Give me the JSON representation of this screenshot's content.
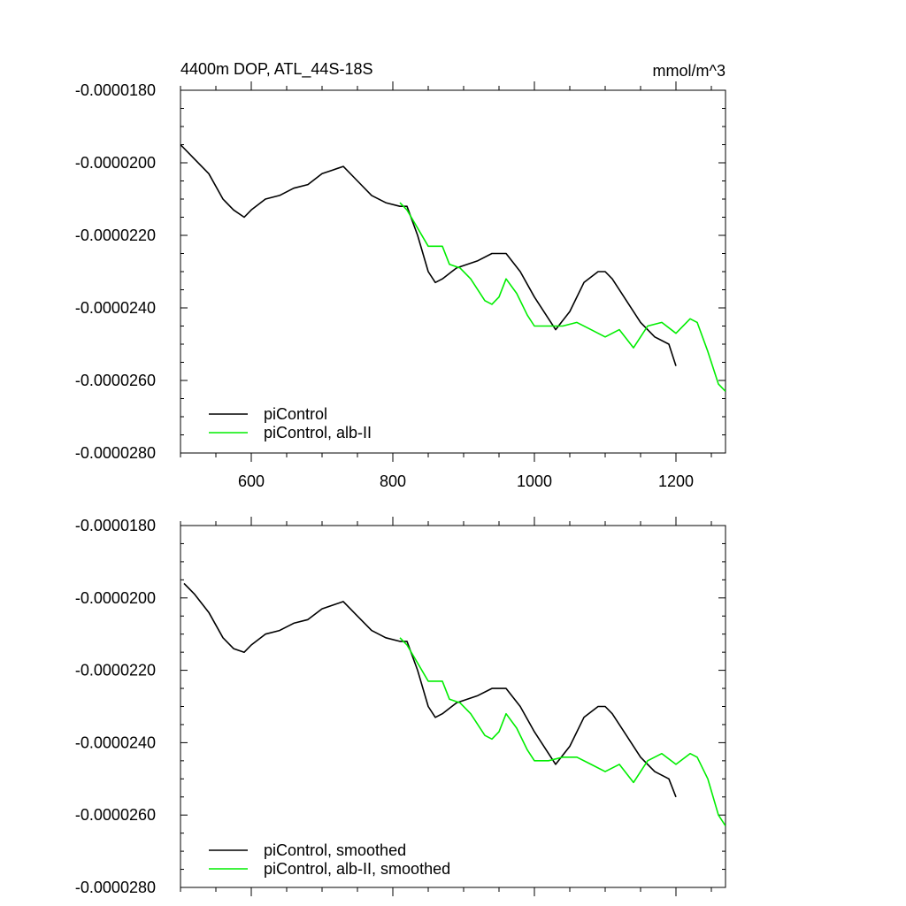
{
  "colors": {
    "control": "#000000",
    "albII": "#00ee00"
  },
  "chart_data": [
    {
      "type": "line",
      "title": "4400m DOP, ATL_44S-18S",
      "units": "mmol/m^3",
      "xlim": [
        500,
        1270
      ],
      "ylim": [
        -2.8e-05,
        -1.8e-05
      ],
      "xticks": [
        600,
        800,
        1000,
        1200
      ],
      "xtick_labels": [
        "600",
        "800",
        "1000",
        "1200"
      ],
      "yticks": [
        -1.8e-05,
        -2e-05,
        -2.2e-05,
        -2.4e-05,
        -2.6e-05,
        -2.8e-05
      ],
      "ytick_labels": [
        "-0.0000180",
        "-0.0000200",
        "-0.0000220",
        "-0.0000240",
        "-0.0000260",
        "-0.0000280"
      ],
      "legend": "bottom-left",
      "series": [
        {
          "name": "piControl",
          "color_key": "control",
          "x": [
            500,
            520,
            540,
            560,
            575,
            590,
            600,
            620,
            640,
            660,
            680,
            700,
            715,
            730,
            750,
            770,
            790,
            810,
            820,
            835,
            850,
            860,
            870,
            890,
            920,
            940,
            960,
            980,
            1000,
            1020,
            1030,
            1050,
            1070,
            1090,
            1100,
            1110,
            1130,
            1150,
            1170,
            1190,
            1200
          ],
          "y": [
            -1.95e-05,
            -1.99e-05,
            -2.03e-05,
            -2.1e-05,
            -2.13e-05,
            -2.15e-05,
            -2.13e-05,
            -2.1e-05,
            -2.09e-05,
            -2.07e-05,
            -2.06e-05,
            -2.03e-05,
            -2.02e-05,
            -2.01e-05,
            -2.05e-05,
            -2.09e-05,
            -2.11e-05,
            -2.12e-05,
            -2.12e-05,
            -2.2e-05,
            -2.3e-05,
            -2.33e-05,
            -2.32e-05,
            -2.29e-05,
            -2.27e-05,
            -2.25e-05,
            -2.25e-05,
            -2.3e-05,
            -2.37e-05,
            -2.43e-05,
            -2.46e-05,
            -2.41e-05,
            -2.33e-05,
            -2.3e-05,
            -2.3e-05,
            -2.32e-05,
            -2.38e-05,
            -2.44e-05,
            -2.48e-05,
            -2.5e-05,
            -2.56e-05
          ]
        },
        {
          "name": "piControl, alb-II",
          "color_key": "albII",
          "x": [
            810,
            820,
            835,
            850,
            870,
            880,
            895,
            910,
            930,
            940,
            950,
            960,
            975,
            990,
            1000,
            1020,
            1040,
            1060,
            1080,
            1100,
            1120,
            1140,
            1160,
            1180,
            1200,
            1220,
            1230,
            1245,
            1260,
            1270
          ],
          "y": [
            -2.11e-05,
            -2.13e-05,
            -2.18e-05,
            -2.23e-05,
            -2.23e-05,
            -2.28e-05,
            -2.29e-05,
            -2.32e-05,
            -2.38e-05,
            -2.39e-05,
            -2.37e-05,
            -2.32e-05,
            -2.36e-05,
            -2.42e-05,
            -2.45e-05,
            -2.45e-05,
            -2.45e-05,
            -2.44e-05,
            -2.46e-05,
            -2.48e-05,
            -2.46e-05,
            -2.51e-05,
            -2.45e-05,
            -2.44e-05,
            -2.47e-05,
            -2.43e-05,
            -2.44e-05,
            -2.52e-05,
            -2.61e-05,
            -2.63e-05
          ]
        }
      ],
      "legend_labels": [
        "piControl",
        "piControl, alb-II"
      ]
    },
    {
      "type": "line",
      "title": "",
      "units": "",
      "xlim": [
        500,
        1270
      ],
      "ylim": [
        -2.8e-05,
        -1.8e-05
      ],
      "xticks": [
        600,
        800,
        1000,
        1200
      ],
      "xtick_labels": [],
      "yticks": [
        -1.8e-05,
        -2e-05,
        -2.2e-05,
        -2.4e-05,
        -2.6e-05,
        -2.8e-05
      ],
      "ytick_labels": [
        "-0.0000180",
        "-0.0000200",
        "-0.0000220",
        "-0.0000240",
        "-0.0000260",
        "-0.0000280"
      ],
      "legend": "bottom-left",
      "series": [
        {
          "name": "piControl, smoothed",
          "color_key": "control",
          "x": [
            505,
            520,
            540,
            560,
            575,
            590,
            600,
            620,
            640,
            660,
            680,
            700,
            715,
            730,
            750,
            770,
            790,
            810,
            820,
            835,
            850,
            860,
            870,
            890,
            920,
            940,
            960,
            980,
            1000,
            1020,
            1030,
            1050,
            1070,
            1090,
            1100,
            1110,
            1130,
            1150,
            1170,
            1190,
            1200
          ],
          "y": [
            -1.96e-05,
            -1.99e-05,
            -2.04e-05,
            -2.11e-05,
            -2.14e-05,
            -2.15e-05,
            -2.13e-05,
            -2.1e-05,
            -2.09e-05,
            -2.07e-05,
            -2.06e-05,
            -2.03e-05,
            -2.02e-05,
            -2.01e-05,
            -2.05e-05,
            -2.09e-05,
            -2.11e-05,
            -2.12e-05,
            -2.12e-05,
            -2.2e-05,
            -2.3e-05,
            -2.33e-05,
            -2.32e-05,
            -2.29e-05,
            -2.27e-05,
            -2.25e-05,
            -2.25e-05,
            -2.3e-05,
            -2.37e-05,
            -2.43e-05,
            -2.46e-05,
            -2.41e-05,
            -2.33e-05,
            -2.3e-05,
            -2.3e-05,
            -2.32e-05,
            -2.38e-05,
            -2.44e-05,
            -2.48e-05,
            -2.5e-05,
            -2.55e-05
          ]
        },
        {
          "name": "piControl, alb-II, smoothed",
          "color_key": "albII",
          "x": [
            810,
            820,
            835,
            850,
            870,
            880,
            895,
            910,
            930,
            940,
            950,
            960,
            975,
            990,
            1000,
            1020,
            1040,
            1060,
            1080,
            1100,
            1120,
            1140,
            1160,
            1180,
            1200,
            1220,
            1230,
            1245,
            1260,
            1270
          ],
          "y": [
            -2.11e-05,
            -2.13e-05,
            -2.18e-05,
            -2.23e-05,
            -2.23e-05,
            -2.28e-05,
            -2.29e-05,
            -2.32e-05,
            -2.38e-05,
            -2.39e-05,
            -2.37e-05,
            -2.32e-05,
            -2.36e-05,
            -2.42e-05,
            -2.45e-05,
            -2.45e-05,
            -2.44e-05,
            -2.44e-05,
            -2.46e-05,
            -2.48e-05,
            -2.46e-05,
            -2.51e-05,
            -2.45e-05,
            -2.43e-05,
            -2.46e-05,
            -2.43e-05,
            -2.44e-05,
            -2.5e-05,
            -2.6e-05,
            -2.63e-05
          ]
        }
      ],
      "legend_labels": [
        "piControl, smoothed",
        "piControl, alb-II, smoothed"
      ]
    }
  ]
}
